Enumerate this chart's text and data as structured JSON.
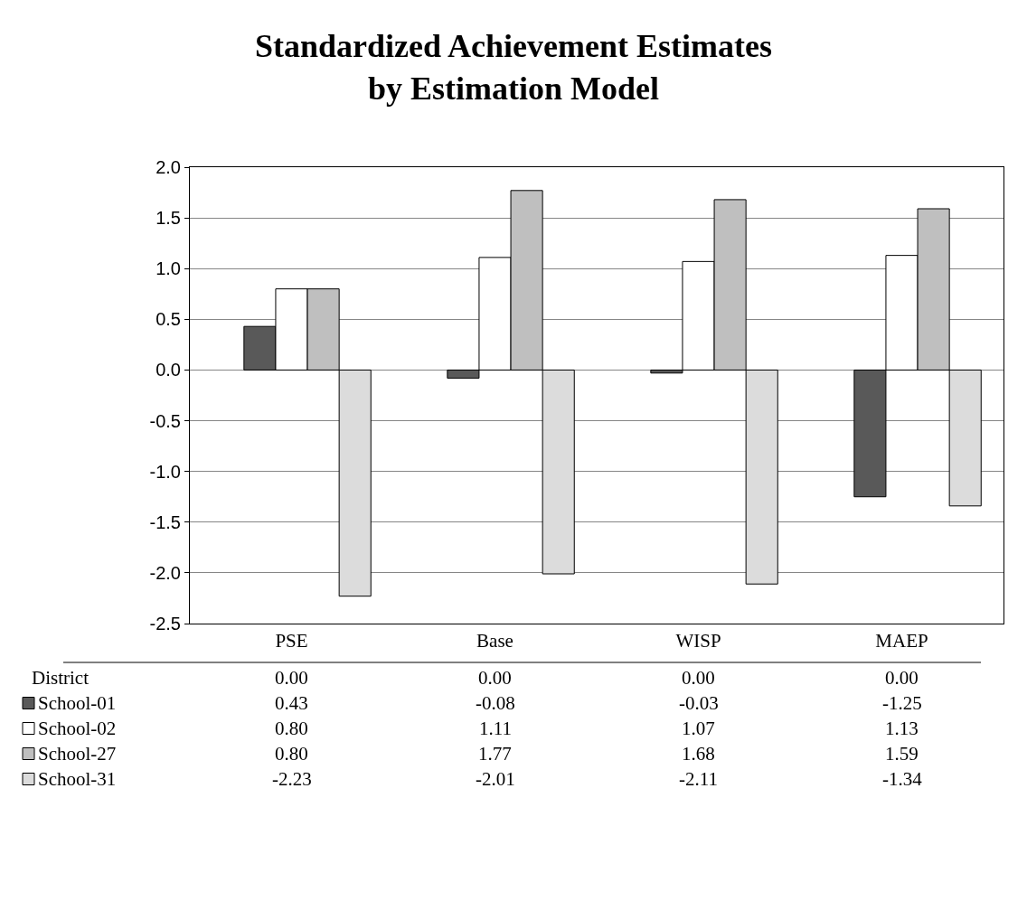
{
  "chart_data": {
    "type": "bar",
    "title": "Standardized Achievement Estimates\nby Estimation Model",
    "categories": [
      "PSE",
      "Base",
      "WISP",
      "MAEP"
    ],
    "series": [
      {
        "name": "District",
        "values": [
          0.0,
          0.0,
          0.0,
          0.0
        ],
        "value_labels": [
          "0.00",
          "0.00",
          "0.00",
          "0.00"
        ]
      },
      {
        "name": "School-01",
        "color": "#595959",
        "values": [
          0.43,
          -0.08,
          -0.03,
          -1.25
        ],
        "value_labels": [
          "0.43",
          "-0.08",
          "-0.03",
          "-1.25"
        ]
      },
      {
        "name": "School-02",
        "color": "#ffffff",
        "values": [
          0.8,
          1.11,
          1.07,
          1.13
        ],
        "value_labels": [
          "0.80",
          "1.11",
          "1.07",
          "1.13"
        ]
      },
      {
        "name": "School-27",
        "color": "#bfbfbf",
        "values": [
          0.8,
          1.77,
          1.68,
          1.59
        ],
        "value_labels": [
          "0.80",
          "1.77",
          "1.68",
          "1.59"
        ]
      },
      {
        "name": "School-31",
        "color": "#dcdcdc",
        "values": [
          -2.23,
          -2.01,
          -2.11,
          -1.34
        ],
        "value_labels": [
          "-2.23",
          "-2.01",
          "-2.11",
          "-1.34"
        ]
      }
    ],
    "ylim": [
      -2.5,
      2.0
    ],
    "yticks": [
      {
        "value": -2.5,
        "label": "-2.5"
      },
      {
        "value": -2.0,
        "label": "-2.0"
      },
      {
        "value": -1.5,
        "label": "-1.5"
      },
      {
        "value": -1.0,
        "label": "-1.0"
      },
      {
        "value": -0.5,
        "label": "-0.5"
      },
      {
        "value": 0.0,
        "label": "0.0"
      },
      {
        "value": 0.5,
        "label": "0.5"
      },
      {
        "value": 1.0,
        "label": "1.0"
      },
      {
        "value": 1.5,
        "label": "1.5"
      },
      {
        "value": 2.0,
        "label": "2.0"
      }
    ],
    "grid": "y",
    "legend": "bottom"
  }
}
